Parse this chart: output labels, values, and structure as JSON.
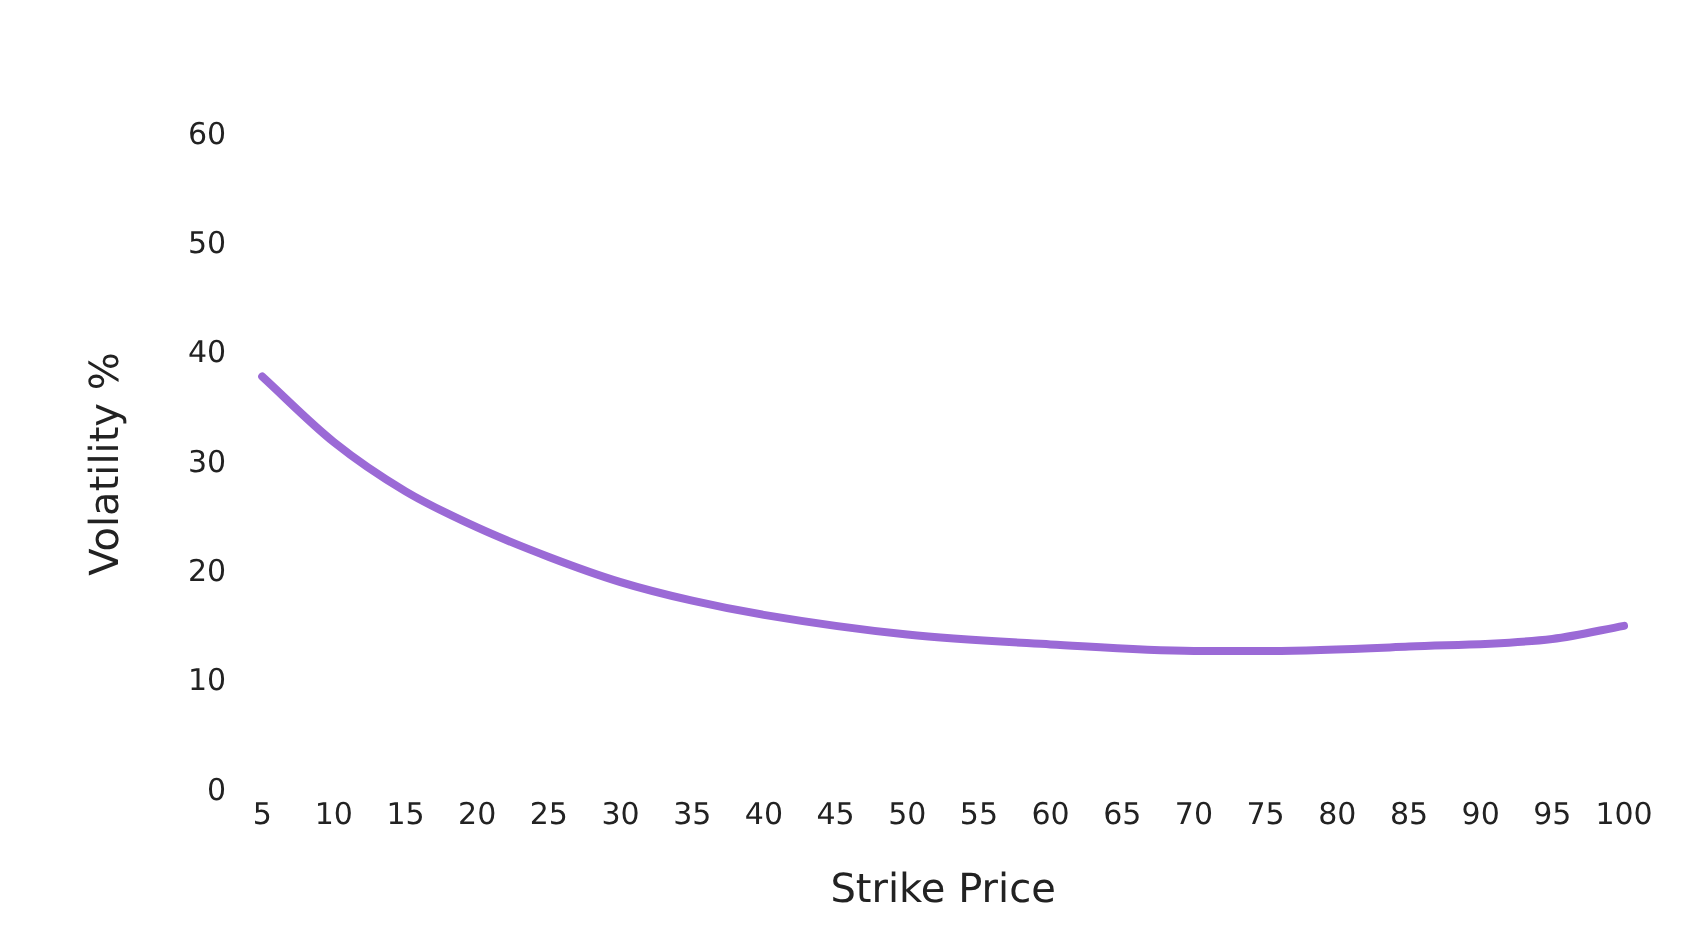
{
  "chart_data": {
    "type": "line",
    "xlabel": "Strike Price",
    "ylabel": "Volatility %",
    "x": [
      5,
      10,
      15,
      20,
      25,
      30,
      35,
      40,
      50,
      60,
      70,
      75,
      85,
      95,
      100
    ],
    "series": [
      {
        "color": "#9b6ad6",
        "values": [
          38,
          32,
          27.5,
          24.2,
          21.5,
          19.2,
          17.5,
          16.2,
          14.4,
          13.5,
          12.9,
          12.9,
          13.3,
          14,
          15.2
        ]
      }
    ],
    "xlim": [
      5,
      100
    ],
    "xticks": [
      5,
      10,
      15,
      20,
      25,
      30,
      35,
      40,
      45,
      50,
      55,
      60,
      65,
      70,
      75,
      80,
      85,
      90,
      95,
      100
    ],
    "ylim": [
      0,
      60
    ],
    "yticks": [
      0,
      10,
      20,
      30,
      40,
      50,
      60
    ],
    "grid": false,
    "legend": false,
    "marker": "none",
    "line_style": "solid"
  }
}
